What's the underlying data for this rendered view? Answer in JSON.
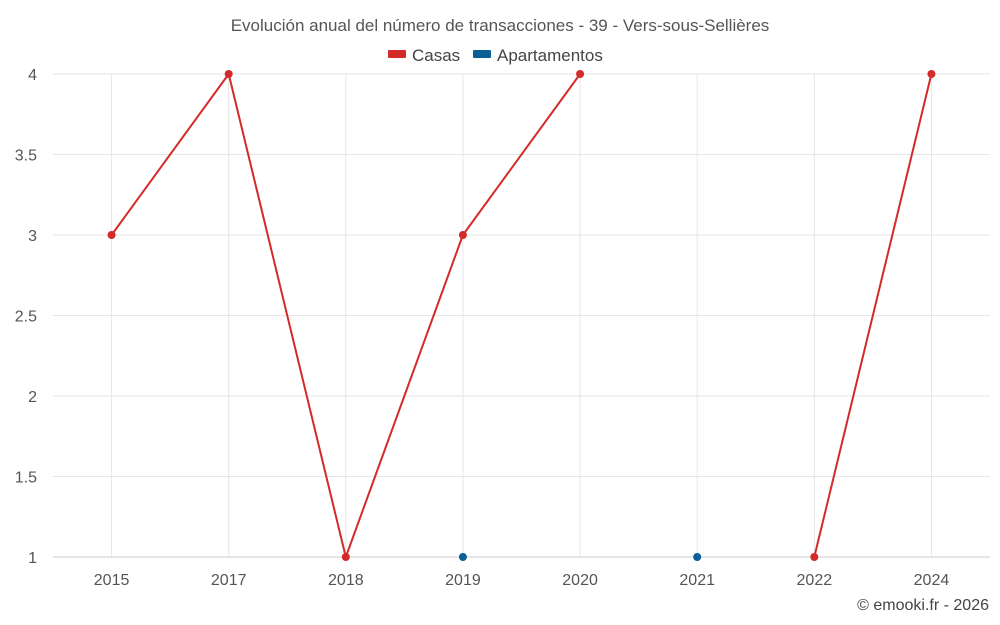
{
  "chart_data": {
    "type": "line",
    "title": "Evolución anual del número de transacciones - 39 - Vers-sous-Sellières",
    "categories": [
      "2015",
      "2017",
      "2018",
      "2019",
      "2020",
      "2021",
      "2022",
      "2024"
    ],
    "ylim": [
      1,
      4
    ],
    "yticks": [
      "1",
      "1.5",
      "2",
      "2.5",
      "3",
      "3.5",
      "4"
    ],
    "ytick_values": [
      1,
      1.5,
      2,
      2.5,
      3,
      3.5,
      4
    ],
    "grid": true,
    "legend_position": "top-center",
    "series": [
      {
        "name": "Casas",
        "color": "#d42a2a",
        "values": [
          3,
          4,
          1,
          3,
          4,
          null,
          1,
          4
        ]
      },
      {
        "name": "Apartamentos",
        "color": "#0a5f94",
        "values": [
          null,
          null,
          null,
          1,
          null,
          1,
          null,
          null
        ]
      }
    ],
    "credit": "© emooki.fr - 2026"
  }
}
